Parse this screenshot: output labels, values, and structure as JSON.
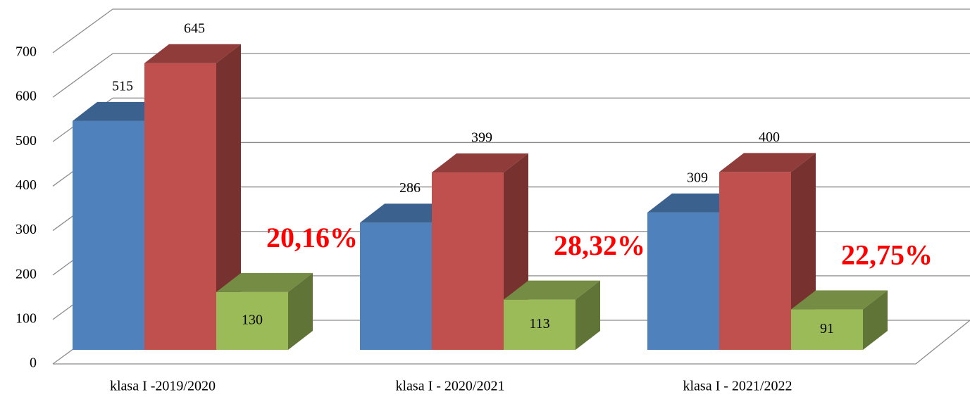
{
  "chart_data": {
    "type": "bar3d",
    "categories": [
      "klasa I -2019/2020",
      "klasa I - 2020/2021",
      "klasa I - 2021/2022"
    ],
    "series": [
      {
        "color": "#4f81bd",
        "values": [
          515,
          286,
          309
        ]
      },
      {
        "color": "#c0504d",
        "values": [
          645,
          399,
          400
        ]
      },
      {
        "color": "#9bbb59",
        "values": [
          130,
          113,
          91
        ]
      }
    ],
    "annotations": [
      "20,16%",
      "28,32%",
      "22,75%"
    ],
    "ylim": [
      0,
      700
    ],
    "yticks": [
      0,
      100,
      200,
      300,
      400,
      500,
      600,
      700
    ],
    "grid": true
  }
}
